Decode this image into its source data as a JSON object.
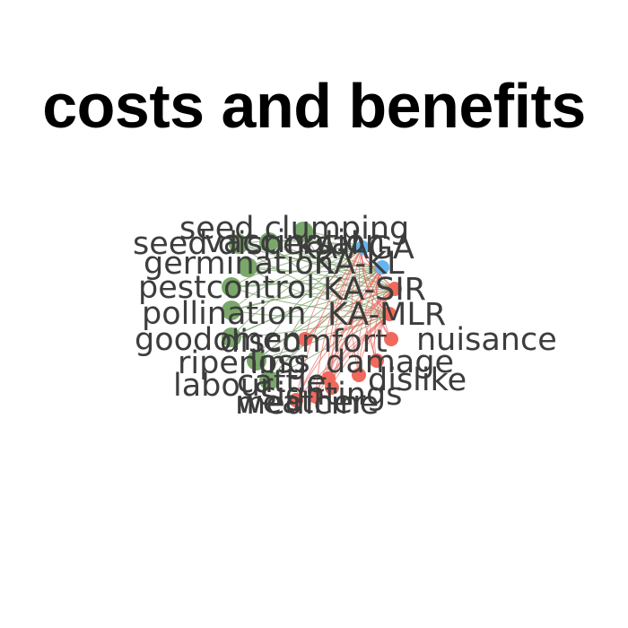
{
  "title": "costs and benefits",
  "colors": {
    "benefit": "#7aa86a",
    "cost": "#f0695c",
    "actor": "#64b5f0",
    "label": "#3d3d3d",
    "link_benefit": "#6f9a5e",
    "link_cost": "#e86a5e"
  },
  "labels": [
    "seed clumping",
    "seed dispersal",
    "vaccination",
    "KA-AGA",
    "germination",
    "KA-KL",
    "pestcontrol",
    "KA-SIR",
    "pollination",
    "KA-MLR",
    "goodomen",
    "discomfort",
    "nuisance",
    "ripening",
    "loss_damage",
    "labour",
    "cattle",
    "dislike",
    "sightings",
    "weather",
    "medicine"
  ]
}
